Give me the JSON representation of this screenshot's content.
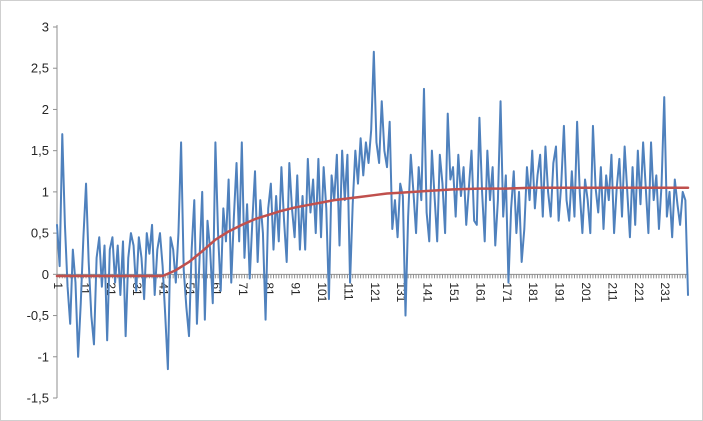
{
  "chart": {
    "background": "#ffffff",
    "border_color": "#cfcfcf",
    "axis_color": "#8f8f8f"
  },
  "chart_data": {
    "type": "line",
    "title": "",
    "xlabel": "",
    "ylabel": "",
    "grid": "off",
    "legend": "none",
    "x_range": [
      1,
      240
    ],
    "ylim": [
      -1.5,
      3
    ],
    "y_tick_values": [
      3,
      2.5,
      2,
      1.5,
      1,
      0.5,
      0,
      -0.5,
      -1,
      -1.5
    ],
    "y_tick_labels": [
      "3",
      "2,5",
      "2",
      "1,5",
      "1",
      "0,5",
      "0",
      "-0,5",
      "-1",
      "-1,5"
    ],
    "x_tick_values": [
      1,
      11,
      21,
      31,
      41,
      51,
      61,
      71,
      81,
      91,
      101,
      111,
      121,
      131,
      141,
      151,
      161,
      171,
      181,
      191,
      201,
      211,
      221,
      231
    ],
    "x_tick_labels": [
      "1",
      "11",
      "21",
      "31",
      "41",
      "51",
      "61",
      "71",
      "81",
      "91",
      "101",
      "111",
      "121",
      "131",
      "141",
      "151",
      "161",
      "171",
      "181",
      "191",
      "201",
      "211",
      "221",
      "231"
    ],
    "series": [
      {
        "name": "noisy-series",
        "color": "#4f81bd",
        "width": 2,
        "x_start": 1,
        "values": [
          0.6,
          0.1,
          1.7,
          0.6,
          -0.15,
          -0.6,
          0.3,
          -0.1,
          -1.0,
          -0.35,
          0.45,
          1.1,
          0.15,
          -0.5,
          -0.85,
          0.2,
          0.45,
          -0.15,
          0.35,
          -0.8,
          0.3,
          0.45,
          -0.1,
          0.35,
          -0.25,
          0.4,
          -0.75,
          0.2,
          0.5,
          0.35,
          -0.2,
          0.45,
          0.2,
          -0.3,
          0.5,
          0.25,
          0.6,
          -0.25,
          0.3,
          0.5,
          0.1,
          -0.5,
          -1.15,
          0.45,
          0.3,
          -0.1,
          0.5,
          1.6,
          0.05,
          -0.4,
          -0.75,
          0.3,
          0.9,
          -0.6,
          0.2,
          1.0,
          -0.55,
          0.65,
          0.3,
          -0.35,
          1.6,
          0.5,
          -0.2,
          0.8,
          0.4,
          1.15,
          -0.1,
          0.7,
          1.35,
          0.4,
          1.6,
          0.2,
          0.85,
          -0.05,
          0.65,
          1.25,
          0.15,
          0.9,
          0.5,
          -0.55,
          0.8,
          1.1,
          0.3,
          0.95,
          0.4,
          1.3,
          0.65,
          0.15,
          1.35,
          0.8,
          0.45,
          1.2,
          0.3,
          0.95,
          0.3,
          1.4,
          0.75,
          1.15,
          0.5,
          1.4,
          0.45,
          1.3,
          0.8,
          -0.3,
          1.2,
          0.9,
          1.45,
          0.35,
          1.5,
          0.9,
          1.45,
          -0.1,
          0.85,
          1.5,
          1.1,
          1.65,
          1.2,
          1.6,
          1.35,
          1.75,
          2.7,
          1.6,
          1.35,
          2.1,
          1.5,
          1.3,
          1.85,
          0.55,
          0.9,
          0.45,
          1.1,
          0.95,
          -0.5,
          0.7,
          1.45,
          1.0,
          0.5,
          1.3,
          0.9,
          2.25,
          0.75,
          0.4,
          1.5,
          0.95,
          0.4,
          1.45,
          1.1,
          0.5,
          1.95,
          1.15,
          1.3,
          0.7,
          1.45,
          0.95,
          1.3,
          0.6,
          1.05,
          1.5,
          0.65,
          0.6,
          1.9,
          1.0,
          0.4,
          1.5,
          0.9,
          1.3,
          0.35,
          0.9,
          2.1,
          0.7,
          1.2,
          -0.1,
          0.8,
          1.25,
          0.5,
          1.0,
          0.15,
          0.55,
          1.3,
          0.9,
          1.5,
          0.8,
          1.2,
          1.45,
          0.7,
          1.55,
          1.0,
          0.7,
          1.35,
          1.55,
          0.65,
          1.1,
          1.8,
          0.9,
          0.65,
          1.25,
          0.7,
          1.85,
          1.0,
          0.5,
          1.15,
          0.9,
          0.5,
          1.8,
          1.05,
          0.75,
          1.3,
          0.55,
          1.2,
          0.9,
          1.45,
          0.5,
          1.05,
          1.4,
          0.7,
          1.55,
          1.0,
          0.45,
          1.3,
          0.6,
          1.5,
          0.85,
          1.6,
          1.05,
          0.5,
          1.6,
          0.9,
          1.2,
          0.55,
          1.1,
          2.15,
          0.7,
          1.0,
          0.45,
          1.15,
          0.85,
          0.6,
          1.0,
          0.9,
          -0.25
        ]
      },
      {
        "name": "trend-series",
        "color": "#c0504d",
        "width": 2.5,
        "points": [
          [
            1,
            -0.02
          ],
          [
            11,
            -0.02
          ],
          [
            21,
            -0.02
          ],
          [
            31,
            -0.02
          ],
          [
            41,
            -0.02
          ],
          [
            46,
            0.05
          ],
          [
            51,
            0.15
          ],
          [
            56,
            0.28
          ],
          [
            61,
            0.42
          ],
          [
            66,
            0.52
          ],
          [
            71,
            0.6
          ],
          [
            76,
            0.67
          ],
          [
            81,
            0.72
          ],
          [
            86,
            0.77
          ],
          [
            91,
            0.81
          ],
          [
            96,
            0.84
          ],
          [
            101,
            0.87
          ],
          [
            106,
            0.9
          ],
          [
            111,
            0.92
          ],
          [
            116,
            0.94
          ],
          [
            121,
            0.96
          ],
          [
            126,
            0.98
          ],
          [
            131,
            0.99
          ],
          [
            136,
            1.0
          ],
          [
            141,
            1.01
          ],
          [
            151,
            1.03
          ],
          [
            161,
            1.04
          ],
          [
            171,
            1.04
          ],
          [
            181,
            1.05
          ],
          [
            191,
            1.05
          ],
          [
            201,
            1.05
          ],
          [
            211,
            1.05
          ],
          [
            221,
            1.05
          ],
          [
            231,
            1.05
          ],
          [
            240,
            1.05
          ]
        ]
      }
    ]
  }
}
